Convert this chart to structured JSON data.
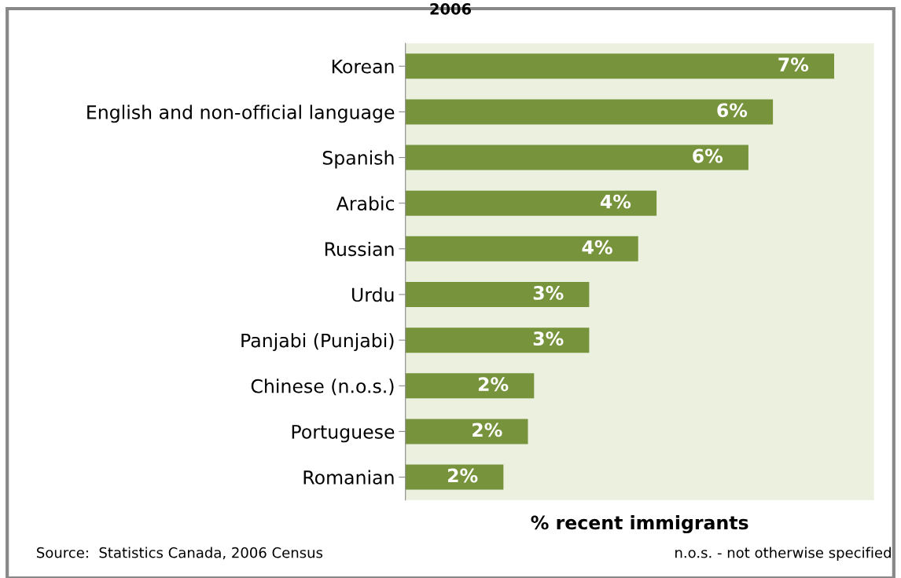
{
  "chart_data": {
    "type": "bar",
    "orientation": "horizontal",
    "title": "2006",
    "xlabel": "% recent immigrants",
    "categories": [
      "Korean",
      "English and non-official language",
      "Spanish",
      "Arabic",
      "Russian",
      "Urdu",
      "Panjabi (Punjabi)",
      "Chinese (n.o.s.)",
      "Portuguese",
      "Romanian"
    ],
    "values": [
      7.0,
      6.0,
      5.6,
      4.1,
      3.8,
      3.0,
      3.0,
      2.1,
      2.0,
      1.6
    ],
    "value_labels": [
      "7%",
      "6%",
      "6%",
      "4%",
      "4%",
      "3%",
      "3%",
      "2%",
      "2%",
      "2%"
    ],
    "color": "#77933c",
    "xlim": [
      0,
      7.65
    ],
    "tick_labels": "y",
    "grid": false,
    "legend": false,
    "annotations": [
      "Source:  Statistics Canada, 2006 Census",
      "n.o.s. - not otherwise specified"
    ]
  }
}
